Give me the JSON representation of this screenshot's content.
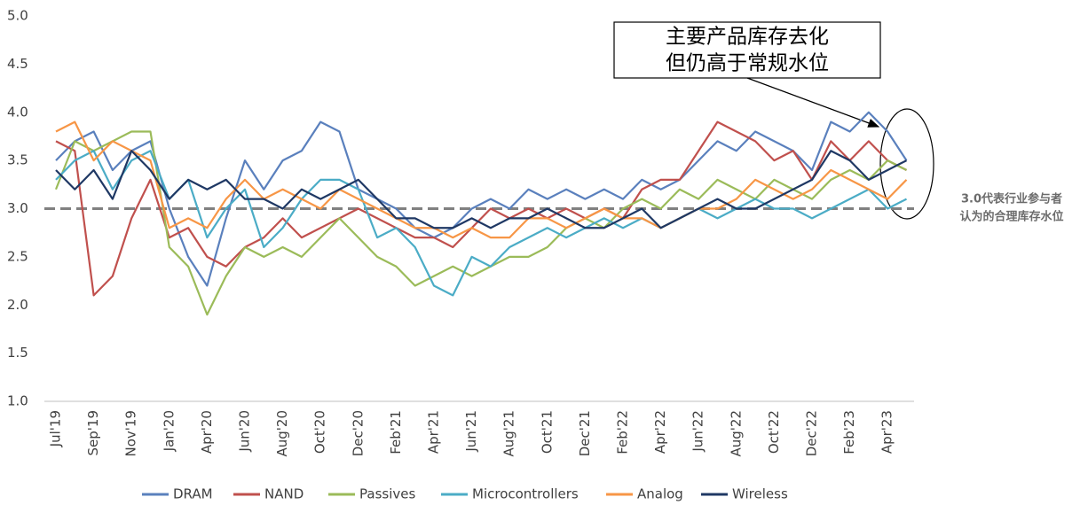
{
  "chart_data": {
    "type": "line",
    "categories": [
      "Jul'19",
      null,
      "Sep'19",
      null,
      "Nov'19",
      null,
      "Jan'20",
      null,
      "Apr'20",
      null,
      "Jun'20",
      null,
      "Aug'20",
      null,
      "Oct'20",
      null,
      "Dec'20",
      null,
      "Feb'21",
      null,
      "Apr'21",
      null,
      "Jun'21",
      null,
      "Aug'21",
      null,
      "Oct'21",
      null,
      "Dec'21",
      null,
      "Feb'22",
      null,
      "Apr'22",
      null,
      "Jun'22",
      null,
      "Aug'22",
      null,
      "Oct'22",
      null,
      "Dec'22",
      null,
      "Feb'23",
      null,
      "Apr'23",
      null
    ],
    "series": [
      {
        "name": "DRAM",
        "color": "#5a80bd",
        "values": [
          3.5,
          3.7,
          3.8,
          3.4,
          3.6,
          3.7,
          3.0,
          2.5,
          2.2,
          2.9,
          3.5,
          3.2,
          3.5,
          3.6,
          3.9,
          3.8,
          3.2,
          3.1,
          3.0,
          2.8,
          2.7,
          2.8,
          3.0,
          3.1,
          3.0,
          3.2,
          3.1,
          3.2,
          3.1,
          3.2,
          3.1,
          3.3,
          3.2,
          3.3,
          3.5,
          3.7,
          3.6,
          3.8,
          3.7,
          3.6,
          3.4,
          3.9,
          3.8,
          4.0,
          3.8,
          3.5
        ]
      },
      {
        "name": "NAND",
        "color": "#c0504d",
        "values": [
          3.7,
          3.6,
          2.1,
          2.3,
          2.9,
          3.3,
          2.7,
          2.8,
          2.5,
          2.4,
          2.6,
          2.7,
          2.9,
          2.7,
          2.8,
          2.9,
          3.0,
          2.9,
          2.8,
          2.7,
          2.7,
          2.6,
          2.8,
          3.0,
          2.9,
          3.0,
          2.9,
          3.0,
          2.9,
          3.0,
          2.9,
          3.2,
          3.3,
          3.3,
          3.6,
          3.9,
          3.8,
          3.7,
          3.5,
          3.6,
          3.3,
          3.7,
          3.5,
          3.7,
          3.5,
          3.4
        ]
      },
      {
        "name": "Passives",
        "color": "#9bbb59",
        "values": [
          3.2,
          3.7,
          3.6,
          3.7,
          3.8,
          3.8,
          2.6,
          2.4,
          1.9,
          2.3,
          2.6,
          2.5,
          2.6,
          2.5,
          2.7,
          2.9,
          2.7,
          2.5,
          2.4,
          2.2,
          2.3,
          2.4,
          2.3,
          2.4,
          2.5,
          2.5,
          2.6,
          2.8,
          2.9,
          2.8,
          3.0,
          3.1,
          3.0,
          3.2,
          3.1,
          3.3,
          3.2,
          3.1,
          3.3,
          3.2,
          3.1,
          3.3,
          3.4,
          3.3,
          3.5,
          3.4
        ]
      },
      {
        "name": "Microcontrollers",
        "color": "#4bacc6",
        "values": [
          3.3,
          3.5,
          3.6,
          3.2,
          3.5,
          3.6,
          3.1,
          3.3,
          2.7,
          3.0,
          3.2,
          2.6,
          2.8,
          3.1,
          3.3,
          3.3,
          3.2,
          2.7,
          2.8,
          2.6,
          2.2,
          2.1,
          2.5,
          2.4,
          2.6,
          2.7,
          2.8,
          2.7,
          2.8,
          2.9,
          2.8,
          2.9,
          2.8,
          2.9,
          3.0,
          2.9,
          3.0,
          3.1,
          3.0,
          3.0,
          2.9,
          3.0,
          3.1,
          3.2,
          3.0,
          3.1
        ]
      },
      {
        "name": "Analog",
        "color": "#f79646",
        "values": [
          3.8,
          3.9,
          3.5,
          3.7,
          3.6,
          3.5,
          2.8,
          2.9,
          2.8,
          3.1,
          3.3,
          3.1,
          3.2,
          3.1,
          3.0,
          3.2,
          3.1,
          3.0,
          2.9,
          2.8,
          2.8,
          2.7,
          2.8,
          2.7,
          2.7,
          2.9,
          2.9,
          2.8,
          2.9,
          3.0,
          2.9,
          2.9,
          2.8,
          2.9,
          3.0,
          3.0,
          3.1,
          3.3,
          3.2,
          3.1,
          3.2,
          3.4,
          3.3,
          3.2,
          3.1,
          3.3
        ]
      },
      {
        "name": "Wireless",
        "color": "#1f3864",
        "values": [
          3.4,
          3.2,
          3.4,
          3.1,
          3.6,
          3.4,
          3.1,
          3.3,
          3.2,
          3.3,
          3.1,
          3.1,
          3.0,
          3.2,
          3.1,
          3.2,
          3.3,
          3.1,
          2.9,
          2.9,
          2.8,
          2.8,
          2.9,
          2.8,
          2.9,
          2.9,
          3.0,
          2.9,
          2.8,
          2.8,
          2.9,
          3.0,
          2.8,
          2.9,
          3.0,
          3.1,
          3.0,
          3.0,
          3.1,
          3.2,
          3.3,
          3.6,
          3.5,
          3.3,
          3.4,
          3.5
        ]
      }
    ],
    "ylim": [
      1.0,
      5.0
    ],
    "yticks": [
      {
        "value": 1,
        "label": "1.0"
      },
      1.5,
      {
        "value": 2,
        "label": "2.0"
      },
      2.5,
      {
        "value": 3,
        "label": "3.0"
      },
      3.5,
      {
        "value": 4,
        "label": "4.0"
      },
      4.5,
      {
        "value": 5,
        "label": "5.0"
      }
    ],
    "grid": false,
    "legend": "bottom",
    "reference_line": {
      "value": 3.0,
      "color": "#808080",
      "label": [
        "3.0代表行业参与者",
        "认为的合理库存水位"
      ]
    },
    "annotation": [
      "主要产品库存去化",
      "但仍高于常规水位"
    ]
  }
}
